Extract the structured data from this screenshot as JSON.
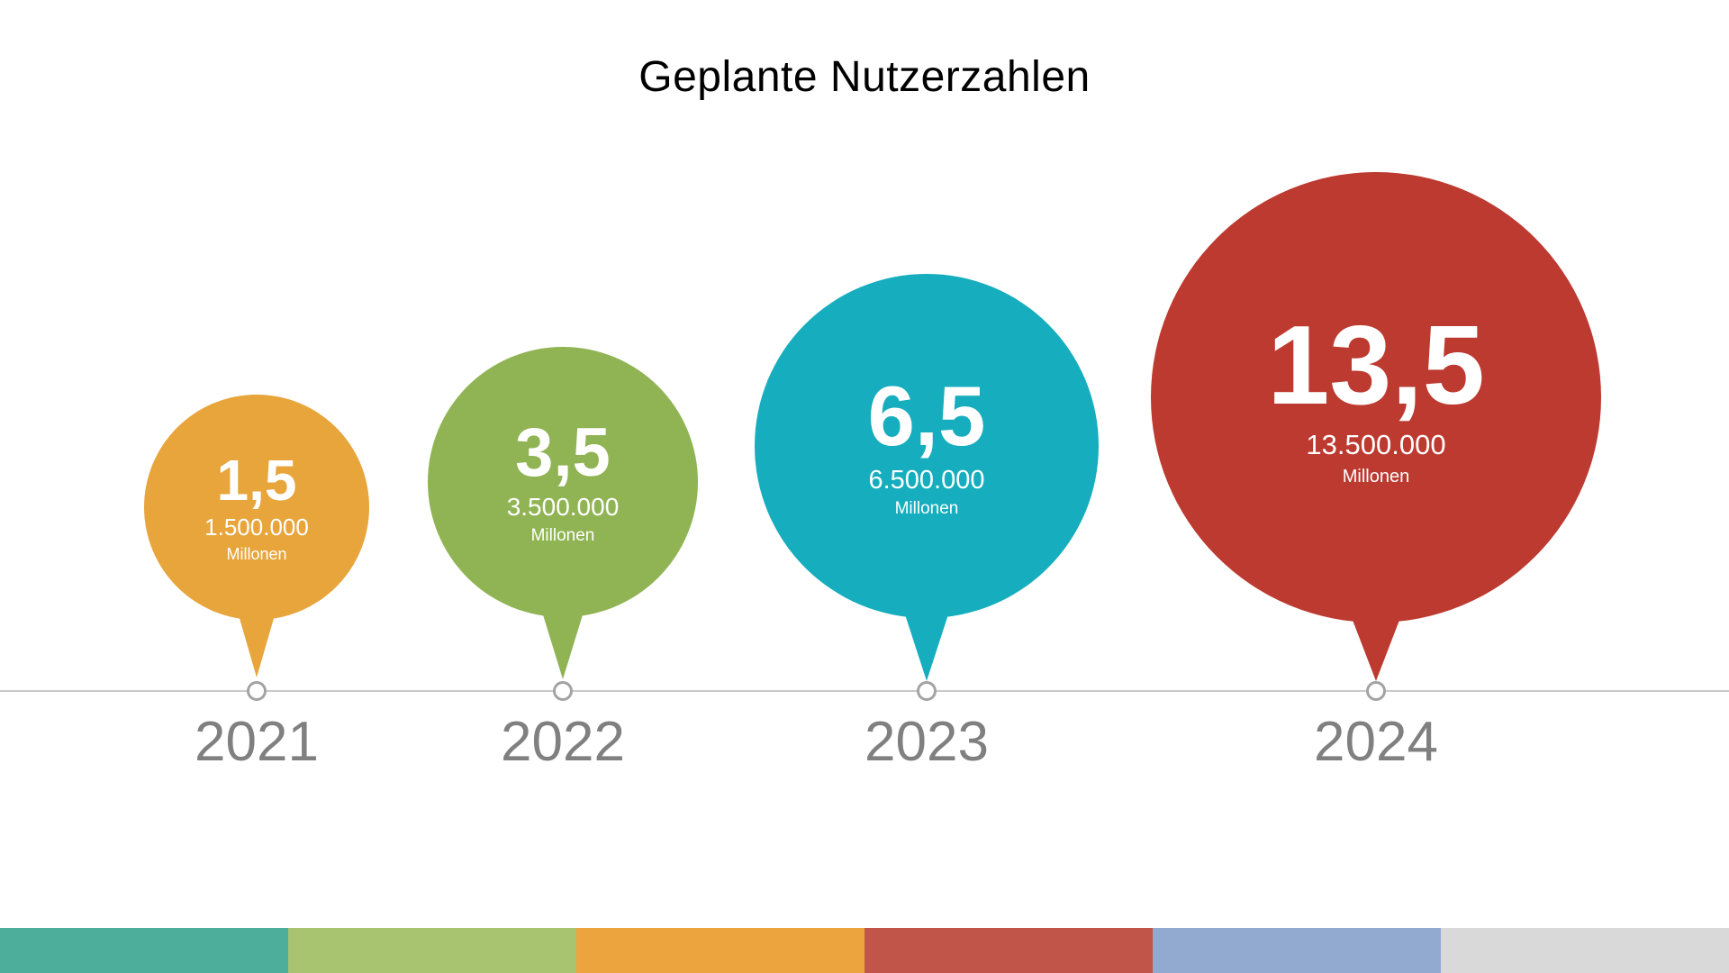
{
  "title": "Geplante Nutzerzahlen",
  "chart_data": {
    "type": "timeline_bubble",
    "title": "Geplante Nutzerzahlen",
    "categories": [
      "2021",
      "2022",
      "2023",
      "2024"
    ],
    "values": [
      1.5,
      3.5,
      6.5,
      13.5
    ],
    "markers": [
      {
        "year": "2021",
        "value": "1,5",
        "detail": "1.500.000",
        "unit": "Millonen",
        "color": "#e8a53c"
      },
      {
        "year": "2022",
        "value": "3,5",
        "detail": "3.500.000",
        "unit": "Millonen",
        "color": "#90b454"
      },
      {
        "year": "2023",
        "value": "6,5",
        "detail": "6.500.000",
        "unit": "Millonen",
        "color": "#16aebe"
      },
      {
        "year": "2024",
        "value": "13,5",
        "detail": "13.500.000",
        "unit": "Millonen",
        "color": "#bd3a31"
      }
    ],
    "axis": {
      "type": "timeline",
      "line_color": "#c9c9c9",
      "label_color": "#808080"
    },
    "legend": "none",
    "grid": "off"
  },
  "footer_stripe": {
    "colors": [
      "#4daf9b",
      "#a9c471",
      "#eca43e",
      "#c25549",
      "#92a9d0",
      "#d9d9d9"
    ]
  }
}
